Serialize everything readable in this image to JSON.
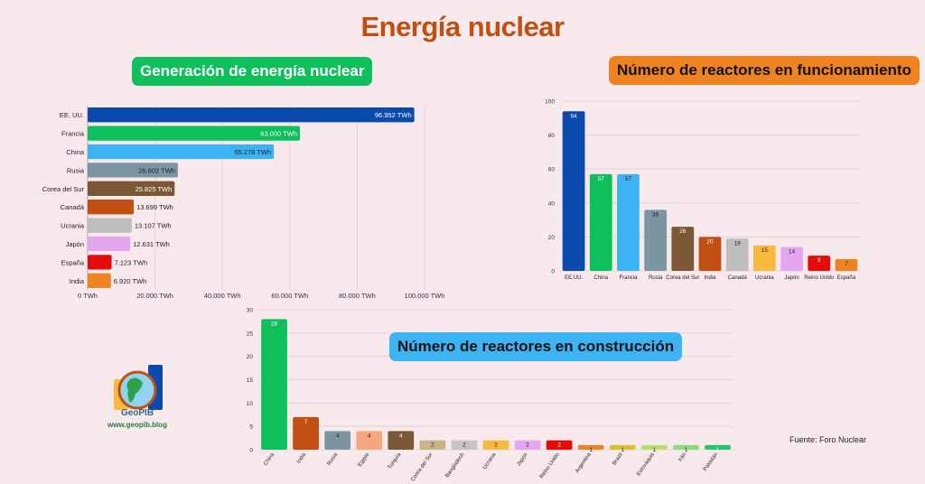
{
  "main_title": "Energía nuclear",
  "source": "Fuente: Foro Nuclear",
  "logo": {
    "name": "GeoPIB",
    "web": "www.geopib.blog"
  },
  "chart_data": [
    {
      "type": "bar",
      "orientation": "horizontal",
      "title": "Generación de energía nuclear",
      "categories": [
        "EE. UU.",
        "Francia",
        "China",
        "Rusia",
        "Corea del Sur",
        "Canadá",
        "Ucrania",
        "Japón",
        "España",
        "India"
      ],
      "values": [
        96952,
        63000,
        55278,
        26802,
        25825,
        13699,
        13107,
        12631,
        7123,
        6920
      ],
      "value_labels": [
        "96.952 TWh",
        "63.000 TWh",
        "55.278 TWh",
        "26.802 TWh",
        "25.825 TWh",
        "13.699 TWh",
        "13.107 TWh",
        "12.631 TWh",
        "7.123 TWh",
        "6.920 TWh"
      ],
      "colors": [
        "#0a4aad",
        "#0ec05b",
        "#3cb3f2",
        "#7b96a1",
        "#7a5836",
        "#c24f12",
        "#bdbdbd",
        "#e4a6ef",
        "#e60b0b",
        "#f08321"
      ],
      "xlim": [
        0,
        100000
      ],
      "xticks": [
        0,
        20000,
        40000,
        60000,
        80000,
        100000
      ],
      "xtick_labels": [
        "0 TWh",
        "20.000 TWh",
        "40.000 TWh",
        "60.000 TWh",
        "80.000 TWh",
        "100.000 TWh"
      ],
      "grid": true
    },
    {
      "type": "bar",
      "title": "Número de reactores en funcionamiento",
      "categories": [
        "EE.UU.",
        "China",
        "Francia",
        "Rusia",
        "Corea del Sur",
        "India",
        "Canadá",
        "Ucrania",
        "Japón",
        "Reino Unido",
        "España"
      ],
      "values": [
        94,
        57,
        57,
        36,
        26,
        20,
        19,
        15,
        14,
        9,
        7
      ],
      "colors": [
        "#0a4aad",
        "#0ec05b",
        "#3cb3f2",
        "#7b96a1",
        "#7a5836",
        "#c24f12",
        "#bdbdbd",
        "#f7b940",
        "#e4a6ef",
        "#e60b0b",
        "#f08321"
      ],
      "ylim": [
        0,
        100
      ],
      "yticks": [
        0,
        20,
        40,
        60,
        80,
        100
      ],
      "grid": true
    },
    {
      "type": "bar",
      "title": "Número de reactores en construcción",
      "categories": [
        "China",
        "India",
        "Rusia",
        "Egipto",
        "Turquía",
        "Corea del Sur",
        "Bangladesh",
        "Ucrania",
        "Japón",
        "Reino Unido",
        "Argentina",
        "Brazil",
        "Eslovaquia",
        "Irán",
        "Pakistán"
      ],
      "values": [
        28,
        7,
        4,
        4,
        4,
        2,
        2,
        2,
        2,
        2,
        1,
        1,
        1,
        1,
        1
      ],
      "colors": [
        "#0ec05b",
        "#c24f12",
        "#7b96a1",
        "#f6a77e",
        "#7a5836",
        "#c5b485",
        "#c9c2c2",
        "#f7b940",
        "#e4a6ef",
        "#e60b0b",
        "#f08321",
        "#d8c228",
        "#b6e06a",
        "#8cdc7a",
        "#25c56f"
      ],
      "ylim": [
        0,
        30
      ],
      "yticks": [
        0,
        5,
        10,
        15,
        20,
        25,
        30
      ],
      "grid": true
    }
  ]
}
